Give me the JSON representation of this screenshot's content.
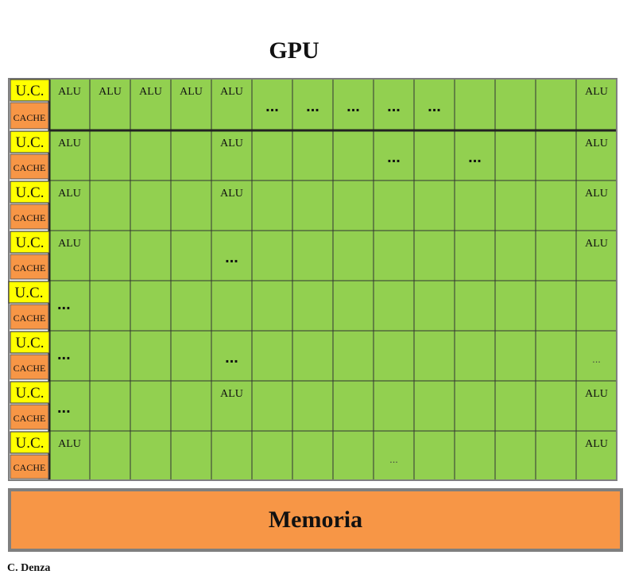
{
  "title": "GPU",
  "control_unit_label": "U.C.",
  "cache_label": "CACHE",
  "alu_label": "ALU",
  "memory_label": "Memoria",
  "credit": "C. Denza",
  "colors": {
    "alu_fill": "#92d050",
    "grid_line": "#333333",
    "uc_fill": "#ffff00",
    "cache_fill": "#f79646",
    "memory_fill": "#f79646",
    "frame": "#7f7f7f"
  },
  "grid": {
    "rows": 8,
    "columns": 14,
    "rows_cells": [
      [
        "ALU",
        "ALU",
        "ALU",
        "ALU",
        "ALU",
        "...",
        "...",
        "...",
        "...",
        "...",
        "",
        "",
        "",
        "ALU"
      ],
      [
        "ALU",
        "",
        "",
        "",
        "ALU",
        "",
        "",
        "",
        "...",
        "",
        "...",
        "",
        "",
        "ALU"
      ],
      [
        "ALU",
        "",
        "",
        "",
        "ALU",
        "",
        "",
        "",
        "",
        "",
        "",
        "",
        "",
        "ALU"
      ],
      [
        "ALU",
        "",
        "",
        "",
        "...",
        "",
        "",
        "",
        "",
        "",
        "",
        "",
        "",
        "ALU"
      ],
      [
        "...",
        "",
        "",
        "",
        "",
        "",
        "",
        "",
        "",
        "",
        "",
        "",
        "",
        ""
      ],
      [
        "...",
        "",
        "",
        "",
        "...",
        "",
        "",
        "",
        "",
        "",
        "",
        "",
        "",
        "..."
      ],
      [
        "...",
        "",
        "",
        "",
        "ALU",
        "",
        "",
        "",
        "",
        "",
        "",
        "",
        "",
        "ALU"
      ],
      [
        "ALU",
        "",
        "",
        "",
        "",
        "",
        "",
        "",
        "...",
        "",
        "",
        "",
        "",
        "ALU"
      ]
    ]
  }
}
